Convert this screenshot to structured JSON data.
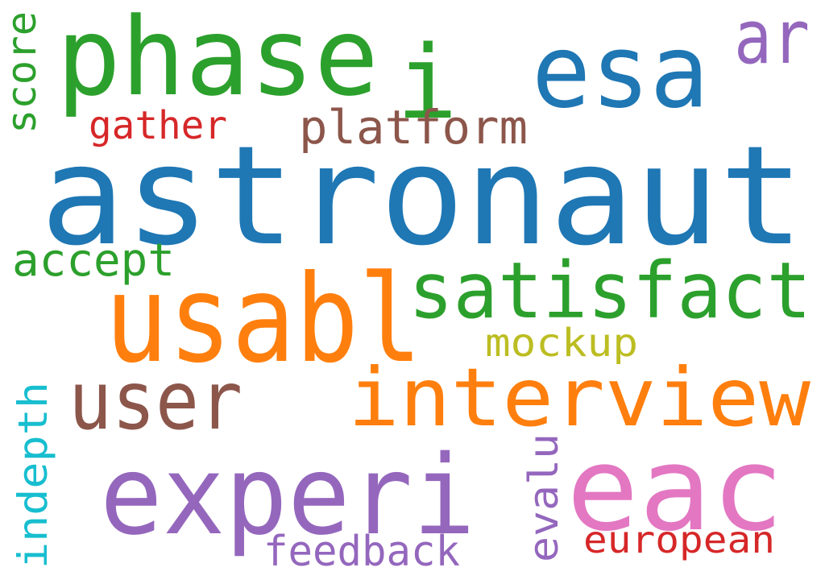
{
  "words": [
    {
      "text": "astronaut",
      "color": "#1f77b4"
    },
    {
      "text": "phase",
      "color": "#2ca02c"
    },
    {
      "text": "i",
      "color": "#2ca02c"
    },
    {
      "text": "esa",
      "color": "#1f77b4"
    },
    {
      "text": "ar",
      "color": "#9467bd"
    },
    {
      "text": "score",
      "color": "#2ca02c"
    },
    {
      "text": "gather",
      "color": "#d62728"
    },
    {
      "text": "platform",
      "color": "#8c564b"
    },
    {
      "text": "accept",
      "color": "#2ca02c"
    },
    {
      "text": "usabl",
      "color": "#ff7f0e"
    },
    {
      "text": "satisfact",
      "color": "#2ca02c"
    },
    {
      "text": "mockup",
      "color": "#bcbd22"
    },
    {
      "text": "user",
      "color": "#8c564b"
    },
    {
      "text": "interview",
      "color": "#ff7f0e"
    },
    {
      "text": "indepth",
      "color": "#17becf"
    },
    {
      "text": "experi",
      "color": "#9467bd"
    },
    {
      "text": "evalu",
      "color": "#9467bd"
    },
    {
      "text": "eac",
      "color": "#e377c2"
    },
    {
      "text": "european",
      "color": "#d62728"
    },
    {
      "text": "feedback",
      "color": "#9467bd"
    }
  ]
}
